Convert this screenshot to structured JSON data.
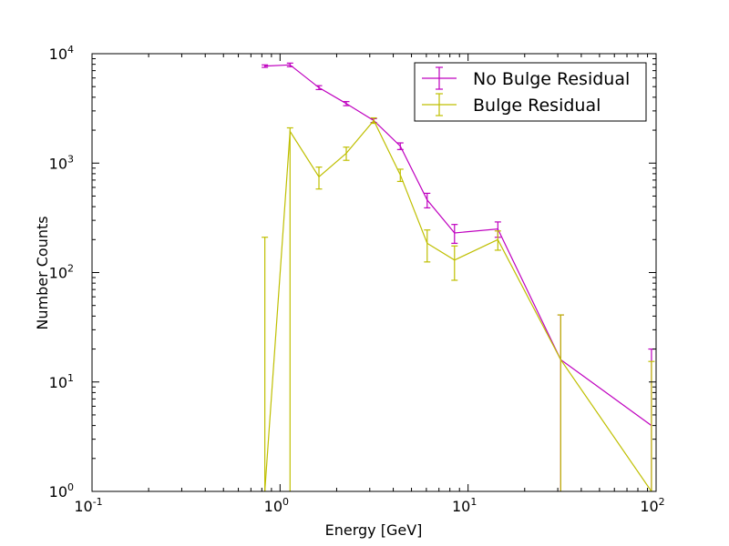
{
  "chart_data": {
    "type": "line",
    "title": "",
    "xlabel": "Energy [GeV]",
    "ylabel": "Number Counts",
    "x_scale": "log",
    "y_scale": "log",
    "xlim": [
      0.1,
      100
    ],
    "ylim": [
      1,
      10000
    ],
    "x_ticks": [
      {
        "value": 0.1,
        "base": "10",
        "exp": "-1"
      },
      {
        "value": 1,
        "base": "10",
        "exp": "0"
      },
      {
        "value": 10,
        "base": "10",
        "exp": "1"
      },
      {
        "value": 100,
        "base": "10",
        "exp": "2"
      }
    ],
    "y_ticks": [
      {
        "value": 1,
        "base": "10",
        "exp": "0"
      },
      {
        "value": 10,
        "base": "10",
        "exp": "1"
      },
      {
        "value": 100,
        "base": "10",
        "exp": "2"
      },
      {
        "value": 1000,
        "base": "10",
        "exp": "3"
      },
      {
        "value": 10000,
        "base": "10",
        "exp": "4"
      }
    ],
    "legend_position": "top-right",
    "series": [
      {
        "name": "No Bulge Residual",
        "color": "#bf00bf",
        "x": [
          0.83,
          1.13,
          1.61,
          2.25,
          3.15,
          4.36,
          6.06,
          8.47,
          14.4,
          31.1,
          94.5
        ],
        "y": [
          7700,
          7900,
          4900,
          3500,
          2450,
          1430,
          460,
          230,
          250,
          16,
          4
        ],
        "yerr_low": [
          200,
          300,
          200,
          150,
          100,
          100,
          70,
          45,
          40,
          16,
          4
        ],
        "yerr_high": [
          200,
          300,
          200,
          150,
          100,
          100,
          70,
          45,
          40,
          25,
          16
        ]
      },
      {
        "name": "Bulge Residual",
        "color": "#bfbf00",
        "x": [
          0.83,
          1.13,
          1.61,
          2.25,
          3.15,
          4.36,
          6.06,
          8.47,
          14.4,
          31.1,
          94.5
        ],
        "y": [
          0.2,
          1950,
          750,
          1230,
          2450,
          780,
          185,
          130,
          200,
          16,
          0.4
        ],
        "yerr_low": [
          0.2,
          1950,
          170,
          170,
          140,
          100,
          60,
          45,
          40,
          16,
          0.4
        ],
        "yerr_high": [
          210,
          150,
          170,
          170,
          140,
          100,
          60,
          45,
          40,
          25,
          15
        ]
      }
    ]
  }
}
